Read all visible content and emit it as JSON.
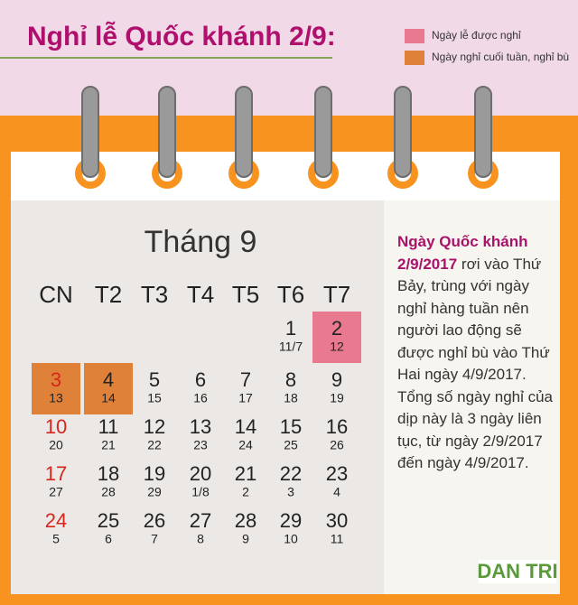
{
  "header": {
    "title": "Nghỉ lễ Quốc khánh 2/9:"
  },
  "legend": [
    {
      "label": "Ngày lễ được nghỉ",
      "color": "#e8798e"
    },
    {
      "label": "Ngày nghỉ cuối tuần, nghỉ bù",
      "color": "#e0813a"
    }
  ],
  "calendar": {
    "month": "Tháng 9",
    "weekdays": [
      "CN",
      "T2",
      "T3",
      "T4",
      "T5",
      "T6",
      "T7"
    ],
    "weeks": [
      [
        {
          "day": "1",
          "lunar": "11/7"
        },
        {
          "day": "2",
          "lunar": "12",
          "color": "#e8798e"
        }
      ],
      [
        {
          "day": "3",
          "lunar": "13",
          "color": "#e0813a"
        },
        {
          "day": "4",
          "lunar": "14",
          "color": "#e0813a"
        },
        {
          "day": "5",
          "lunar": "15"
        },
        {
          "day": "6",
          "lunar": "16"
        },
        {
          "day": "7",
          "lunar": "17"
        },
        {
          "day": "8",
          "lunar": "18"
        },
        {
          "day": "9",
          "lunar": "19"
        }
      ],
      [
        {
          "day": "10",
          "lunar": "20"
        },
        {
          "day": "11",
          "lunar": "21"
        },
        {
          "day": "12",
          "lunar": "22"
        },
        {
          "day": "13",
          "lunar": "23"
        },
        {
          "day": "14",
          "lunar": "24"
        },
        {
          "day": "15",
          "lunar": "25"
        },
        {
          "day": "16",
          "lunar": "26"
        }
      ],
      [
        {
          "day": "17",
          "lunar": "27"
        },
        {
          "day": "18",
          "lunar": "28"
        },
        {
          "day": "19",
          "lunar": "29"
        },
        {
          "day": "20",
          "lunar": "1/8"
        },
        {
          "day": "21",
          "lunar": "2"
        },
        {
          "day": "22",
          "lunar": "3"
        },
        {
          "day": "23",
          "lunar": "4"
        }
      ],
      [
        {
          "day": "24",
          "lunar": "5"
        },
        {
          "day": "25",
          "lunar": "6"
        },
        {
          "day": "26",
          "lunar": "7"
        },
        {
          "day": "27",
          "lunar": "8"
        },
        {
          "day": "28",
          "lunar": "9"
        },
        {
          "day": "29",
          "lunar": "10"
        },
        {
          "day": "30",
          "lunar": "11"
        }
      ]
    ]
  },
  "side_note": {
    "highlight": "Ngày Quốc khánh 2/9/2017",
    "text": "rơi vào Thứ Bảy, trùng với ngày nghỉ hàng tuần nên người lao động sẽ được nghỉ bù vào Thứ Hai ngày 4/9/2017. Tổng số ngày nghỉ của dịp này là 3 ngày liên tục, từ ngày 2/9/2017 đến ngày 4/9/2017."
  },
  "logo": "DAN TRI"
}
